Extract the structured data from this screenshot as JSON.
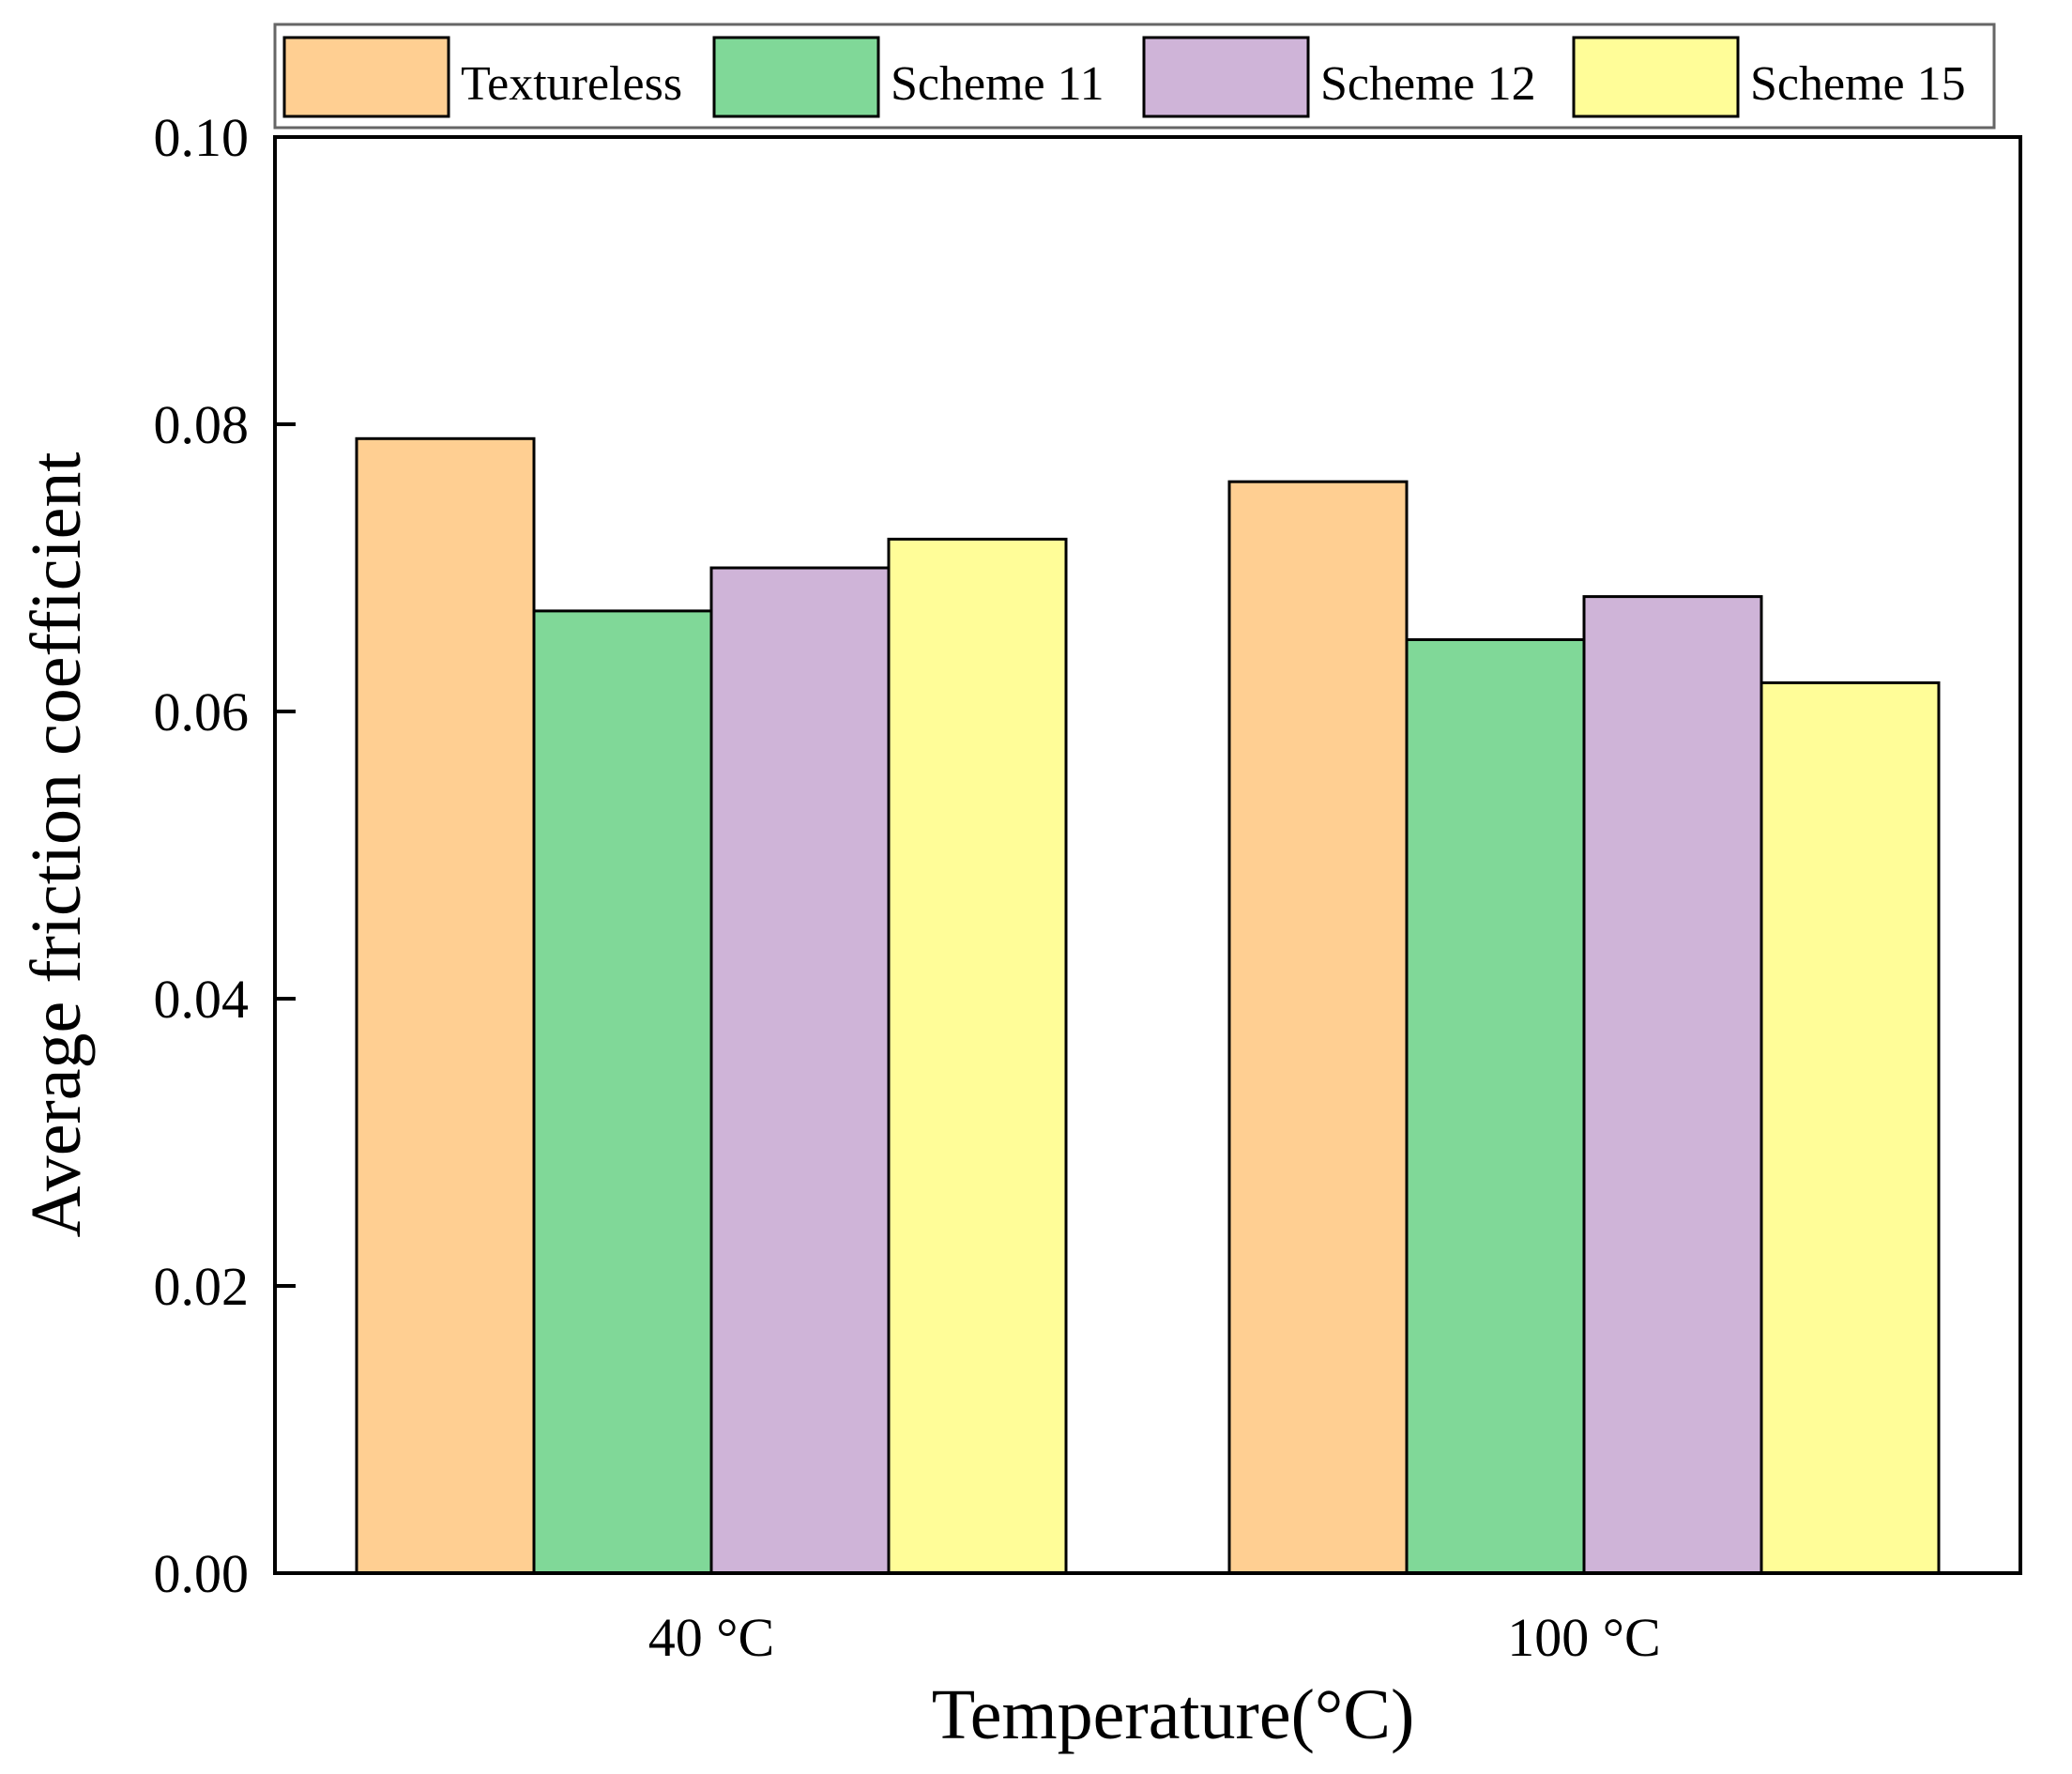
{
  "chart_data": {
    "type": "bar",
    "title": "",
    "xlabel": "Temperature(°C)",
    "ylabel": "Average friction coefficient",
    "categories": [
      "40 °C",
      "100 °C"
    ],
    "series": [
      {
        "name": "Textureless",
        "values": [
          0.079,
          0.076
        ],
        "color": "#FFCF92"
      },
      {
        "name": "Scheme 11",
        "values": [
          0.067,
          0.065
        ],
        "color": "#80D898"
      },
      {
        "name": "Scheme 12",
        "values": [
          0.07,
          0.068
        ],
        "color": "#CFB4D8"
      },
      {
        "name": "Scheme 15",
        "values": [
          0.072,
          0.062
        ],
        "color": "#FFFD98"
      }
    ],
    "ylim": [
      0,
      0.1
    ],
    "yticks": [
      "0.00",
      "0.02",
      "0.04",
      "0.06",
      "0.08",
      "0.10"
    ],
    "grid": false,
    "legend_position": "top"
  }
}
